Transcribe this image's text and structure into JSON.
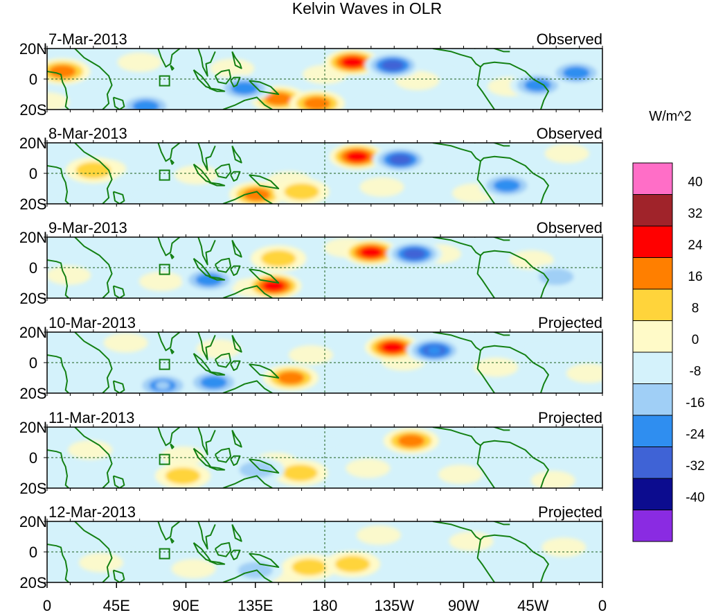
{
  "chart_data": {
    "type": "heatmap",
    "title": "Kelvin Waves in OLR",
    "colorbar": {
      "units": "W/m^2",
      "bounds": [
        "40",
        "32",
        "24",
        "16",
        "8",
        "0",
        "-8",
        "-16",
        "-24",
        "-32",
        "-40"
      ],
      "colors": [
        "#ff6ec7",
        "#a0232a",
        "#ff0000",
        "#ff7f00",
        "#ffd43b",
        "#fffac8",
        "#d4f2fb",
        "#a0cff6",
        "#2f8ef0",
        "#3f63d6",
        "#0c0c8f",
        "#8a2be2"
      ]
    },
    "x_ticks": [
      "0",
      "45E",
      "90E",
      "135E",
      "180",
      "135W",
      "90W",
      "45W",
      "0"
    ],
    "y_ticks": [
      "20N",
      "0",
      "20S"
    ],
    "xlim_deg_east": [
      0,
      360
    ],
    "ylim_deg": [
      -20,
      20
    ],
    "panels": [
      {
        "date": "7-Mar-2013",
        "kind": "Observed",
        "anomalies": [
          {
            "lon": 198,
            "lat": 11,
            "value": 28
          },
          {
            "lon": 224,
            "lat": 9,
            "value": -28
          },
          {
            "lon": 10,
            "lat": 5,
            "value": 18
          },
          {
            "lon": 150,
            "lat": -13,
            "value": 16
          },
          {
            "lon": 175,
            "lat": -16,
            "value": 16
          },
          {
            "lon": 128,
            "lat": -6,
            "value": -18
          },
          {
            "lon": 318,
            "lat": -4,
            "value": -22
          },
          {
            "lon": 343,
            "lat": 4,
            "value": -20
          },
          {
            "lon": 64,
            "lat": -18,
            "value": -22
          }
        ]
      },
      {
        "date": "8-Mar-2013",
        "kind": "Observed",
        "anomalies": [
          {
            "lon": 201,
            "lat": 11,
            "value": 30
          },
          {
            "lon": 229,
            "lat": 9,
            "value": -28
          },
          {
            "lon": 136,
            "lat": -14,
            "value": 20
          },
          {
            "lon": 165,
            "lat": -12,
            "value": 14
          },
          {
            "lon": 298,
            "lat": -8,
            "value": -18
          },
          {
            "lon": 30,
            "lat": 2,
            "value": 12
          }
        ]
      },
      {
        "date": "9-Mar-2013",
        "kind": "Observed",
        "anomalies": [
          {
            "lon": 210,
            "lat": 10,
            "value": 30
          },
          {
            "lon": 238,
            "lat": 9,
            "value": -26
          },
          {
            "lon": 147,
            "lat": -12,
            "value": 24
          },
          {
            "lon": 105,
            "lat": -8,
            "value": -18
          },
          {
            "lon": 150,
            "lat": 6,
            "value": 12
          },
          {
            "lon": 330,
            "lat": -6,
            "value": -14
          }
        ]
      },
      {
        "date": "10-Mar-2013",
        "kind": "Projected",
        "anomalies": [
          {
            "lon": 224,
            "lat": 10,
            "value": 28
          },
          {
            "lon": 251,
            "lat": 8,
            "value": -24
          },
          {
            "lon": 158,
            "lat": -10,
            "value": 20
          },
          {
            "lon": 108,
            "lat": -13,
            "value": -18
          },
          {
            "lon": 75,
            "lat": -15,
            "value": -16
          }
        ]
      },
      {
        "date": "11-Mar-2013",
        "kind": "Projected",
        "anomalies": [
          {
            "lon": 236,
            "lat": 11,
            "value": 20
          },
          {
            "lon": 164,
            "lat": -10,
            "value": 14
          },
          {
            "lon": 136,
            "lat": -8,
            "value": -12
          },
          {
            "lon": 88,
            "lat": -12,
            "value": 10
          }
        ]
      },
      {
        "date": "12-Mar-2013",
        "kind": "Projected",
        "anomalies": [
          {
            "lon": 170,
            "lat": -10,
            "value": 9
          },
          {
            "lon": 135,
            "lat": -12,
            "value": -10
          },
          {
            "lon": 198,
            "lat": -8,
            "value": 8
          }
        ]
      }
    ]
  }
}
